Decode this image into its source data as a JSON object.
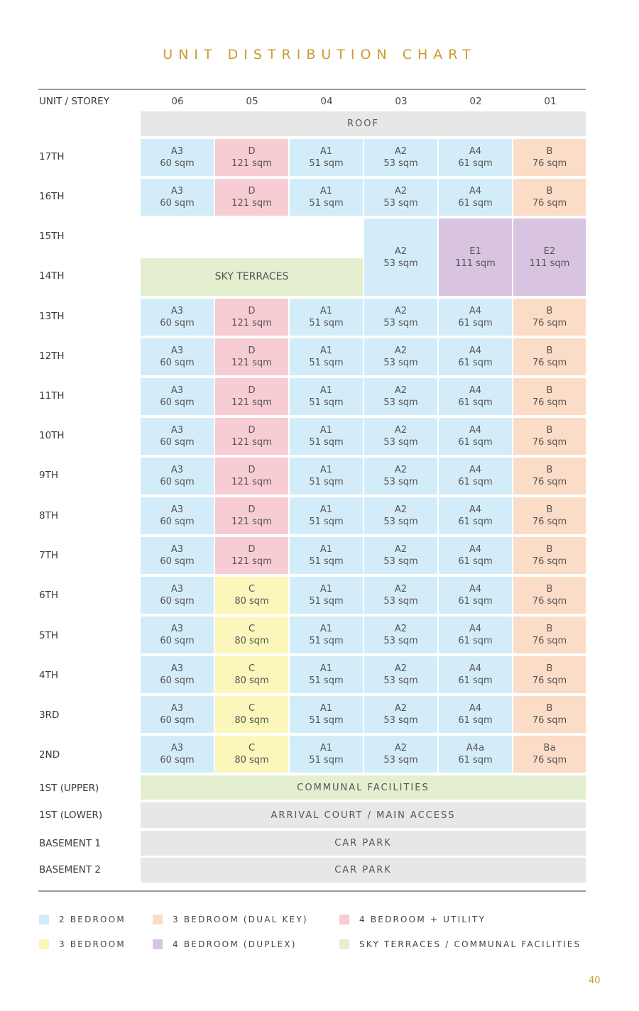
{
  "title": "UNIT DISTRIBUTION CHART",
  "header": {
    "label": "UNIT / STOREY",
    "columns": [
      "06",
      "05",
      "04",
      "03",
      "02",
      "01"
    ]
  },
  "colors": {
    "two_bedroom": "#d3ecf9",
    "three_bedroom": "#fbf6ba",
    "three_bedroom_dual_key": "#fbdcc6",
    "four_bedroom_utility": "#f8ccd3",
    "four_bedroom_duplex": "#d8c4e0",
    "sky_terraces_communal": "#e4efcf",
    "common": "#e7e7e7",
    "title": "#c99a2e"
  },
  "roof": "ROOF",
  "storey_labels": [
    "17TH",
    "16TH",
    "15TH",
    "14TH",
    "13TH",
    "12TH",
    "11TH",
    "10TH",
    "9TH",
    "8TH",
    "7TH",
    "6TH",
    "5TH",
    "4TH",
    "3RD",
    "2ND",
    "1ST (UPPER)",
    "1ST (LOWER)",
    "BASEMENT 1",
    "BASEMENT 2"
  ],
  "units": {
    "A3": {
      "name": "A3",
      "area": "60 sqm"
    },
    "D": {
      "name": "D",
      "area": "121 sqm"
    },
    "C": {
      "name": "C",
      "area": "80 sqm"
    },
    "A1": {
      "name": "A1",
      "area": "51 sqm"
    },
    "A2": {
      "name": "A2",
      "area": "53 sqm"
    },
    "A4": {
      "name": "A4",
      "area": "61 sqm"
    },
    "A4a": {
      "name": "A4a",
      "area": "61 sqm"
    },
    "B": {
      "name": "B",
      "area": "76 sqm"
    },
    "Ba": {
      "name": "Ba",
      "area": "76 sqm"
    },
    "E1": {
      "name": "E1",
      "area": "111 sqm"
    },
    "E2": {
      "name": "E2",
      "area": "111 sqm"
    }
  },
  "typical_rows": {
    "17TH": [
      "A3",
      "D",
      "A1",
      "A2",
      "A4",
      "B"
    ],
    "16TH": [
      "A3",
      "D",
      "A1",
      "A2",
      "A4",
      "B"
    ],
    "13TH": [
      "A3",
      "D",
      "A1",
      "A2",
      "A4",
      "B"
    ],
    "12TH": [
      "A3",
      "D",
      "A1",
      "A2",
      "A4",
      "B"
    ],
    "11TH": [
      "A3",
      "D",
      "A1",
      "A2",
      "A4",
      "B"
    ],
    "10TH": [
      "A3",
      "D",
      "A1",
      "A2",
      "A4",
      "B"
    ],
    "9TH": [
      "A3",
      "D",
      "A1",
      "A2",
      "A4",
      "B"
    ],
    "8TH": [
      "A3",
      "D",
      "A1",
      "A2",
      "A4",
      "B"
    ],
    "7TH": [
      "A3",
      "D",
      "A1",
      "A2",
      "A4",
      "B"
    ],
    "6TH": [
      "A3",
      "C",
      "A1",
      "A2",
      "A4",
      "B"
    ],
    "5TH": [
      "A3",
      "C",
      "A1",
      "A2",
      "A4",
      "B"
    ],
    "4TH": [
      "A3",
      "C",
      "A1",
      "A2",
      "A4",
      "B"
    ],
    "3RD": [
      "A3",
      "C",
      "A1",
      "A2",
      "A4",
      "B"
    ],
    "2ND": [
      "A3",
      "C",
      "A1",
      "A2",
      "A4a",
      "Ba"
    ]
  },
  "duplex_floors": {
    "sky_terraces": "SKY TERRACES",
    "units": [
      "A2",
      "E1",
      "E2"
    ]
  },
  "lower_floors": {
    "upper_first": "COMMUNAL FACILITIES",
    "lower_first": "ARRIVAL COURT / MAIN ACCESS",
    "basement_1": "CAR PARK",
    "basement_2": "CAR PARK"
  },
  "legend": [
    {
      "label": "2 BEDROOM",
      "color": "#d3ecf9"
    },
    {
      "label": "3 BEDROOM (DUAL KEY)",
      "color": "#fbdcc6"
    },
    {
      "label": "4 BEDROOM + UTILITY",
      "color": "#f8ccd3"
    },
    {
      "label": "3 BEDROOM",
      "color": "#fbf6ba"
    },
    {
      "label": "4 BEDROOM (DUPLEX)",
      "color": "#d8c4e0"
    },
    {
      "label": "SKY TERRACES / COMMUNAL FACILITIES",
      "color": "#e4efcf"
    }
  ],
  "page_number": "40"
}
